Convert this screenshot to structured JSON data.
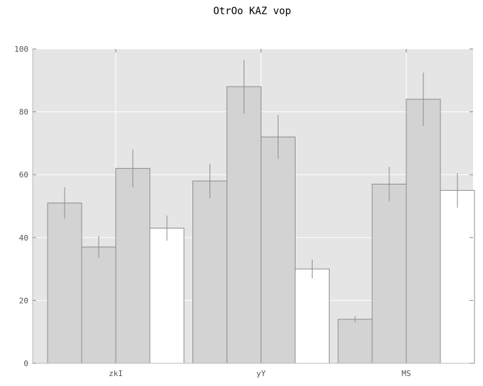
{
  "chart_data": {
    "type": "bar",
    "title": "OtrOo KAZ vop",
    "xlabel": "",
    "ylabel": "",
    "categories": [
      "zkI",
      "yY",
      "MS"
    ],
    "ylim": [
      0,
      100
    ],
    "yticks": [
      0,
      20,
      40,
      60,
      80,
      100
    ],
    "grid": true,
    "legend": "none",
    "series": [
      {
        "values": [
          51,
          58,
          14
        ],
        "errors": [
          5,
          5.5,
          1
        ],
        "color": "#d3d3d3"
      },
      {
        "values": [
          37,
          88,
          57
        ],
        "errors": [
          3.5,
          8.5,
          5.5
        ],
        "color": "#d3d3d3"
      },
      {
        "values": [
          62,
          72,
          84
        ],
        "errors": [
          6,
          7,
          8.5
        ],
        "color": "#d3d3d3"
      },
      {
        "values": [
          43,
          30,
          55
        ],
        "errors": [
          4,
          3,
          5.5
        ],
        "color": "#ffffff"
      }
    ],
    "colors": {
      "plot_background": "#e5e5e5",
      "grid": "#ffffff",
      "bar_edge": "#8c8c8c",
      "error_bar": "#8c8c8c"
    }
  }
}
